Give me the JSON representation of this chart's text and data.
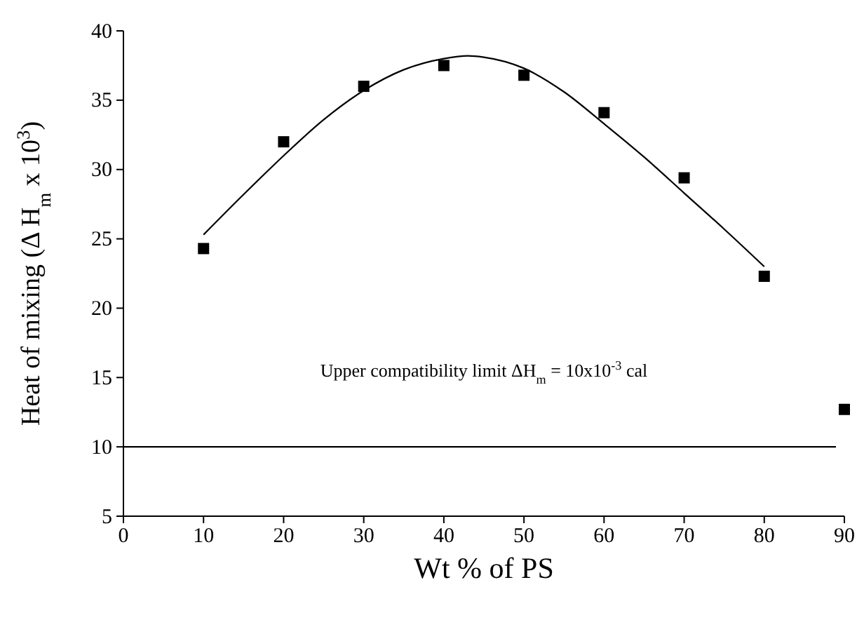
{
  "chart_data": {
    "type": "scatter",
    "xlabel": "Wt % of PS",
    "ylabel": "Heat of mixing (Δ H$_{m}$ x 10$^{3}$)",
    "xlim": [
      0,
      90
    ],
    "ylim": [
      5,
      40
    ],
    "xticks": [
      0,
      10,
      20,
      30,
      40,
      50,
      60,
      70,
      80,
      90
    ],
    "yticks": [
      5,
      10,
      15,
      20,
      25,
      30,
      35,
      40
    ],
    "grid": false,
    "series": [
      {
        "type": "scatter",
        "color": "#000000",
        "marker": "square",
        "x": [
          10,
          20,
          30,
          40,
          50,
          60,
          70,
          80,
          90
        ],
        "values": [
          24.3,
          32,
          36,
          37.5,
          36.8,
          34.1,
          29.4,
          22.3,
          12.7
        ]
      },
      {
        "type": "line",
        "color": "#000000",
        "marker": "none",
        "line_style": "solid",
        "x": [
          10,
          15,
          20,
          25,
          30,
          35,
          40,
          43,
          45,
          50,
          55,
          60,
          65,
          70,
          75,
          80
        ],
        "values": [
          25.3,
          28.2,
          31,
          33.6,
          35.7,
          37.2,
          38,
          38.2,
          38.1,
          37.3,
          35.6,
          33.3,
          30.9,
          28.3,
          25.7,
          23
        ]
      }
    ],
    "ref_lines": [
      {
        "axis": "y",
        "value": 10,
        "label": "Upper compatibility limit ΔH$_{m}$ = 10x10$^{-3}$ cal",
        "color": "#000000",
        "line_style": "solid"
      }
    ]
  }
}
